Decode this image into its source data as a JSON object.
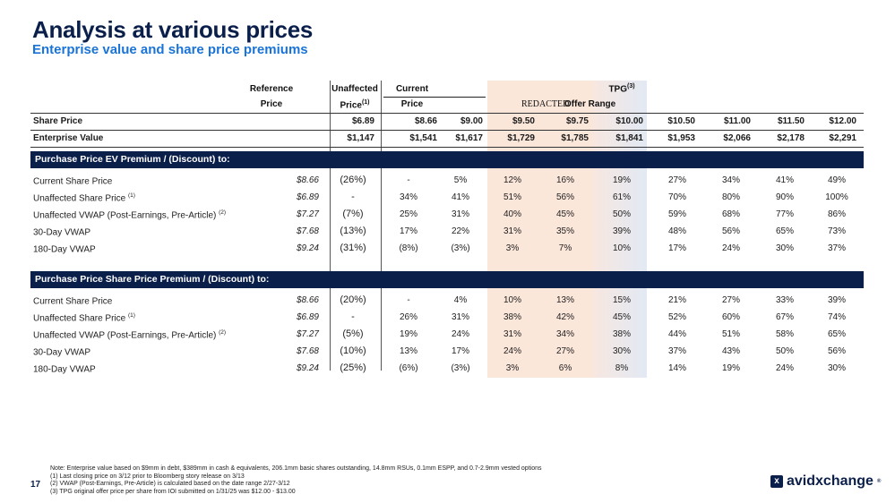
{
  "title": "Analysis at various prices",
  "subtitle": "Enterprise value and share price premiums",
  "header": {
    "reference_l1": "Reference",
    "reference_l2": "Price",
    "unaffected_l1": "Unaffected",
    "unaffected_l2": "Price",
    "unaffected_sup": "(1)",
    "current_l1": "Current",
    "current_l2": "Price",
    "tpg": "TPG",
    "tpg_sup": "(3)",
    "redacted": "REDACTED",
    "offer_range": "Offer Range"
  },
  "share_price": {
    "label": "Share Price",
    "values": [
      "$6.89",
      "$8.66",
      "$9.00",
      "$9.50",
      "$9.75",
      "$10.00",
      "$10.50",
      "$11.00",
      "$11.50",
      "$12.00"
    ]
  },
  "enterprise_value": {
    "label": "Enterprise Value",
    "values": [
      "$1,147",
      "$1,541",
      "$1,617",
      "$1,729",
      "$1,785",
      "$1,841",
      "$1,953",
      "$2,066",
      "$2,178",
      "$2,291"
    ]
  },
  "sections": [
    {
      "title": "Purchase Price EV Premium / (Discount) to:",
      "rows": [
        {
          "label": "Current Share Price",
          "sup": "",
          "ref": "$8.66",
          "unaffected": "(26%)",
          "values": [
            "-",
            "5%",
            "12%",
            "16%",
            "19%",
            "27%",
            "34%",
            "41%",
            "49%"
          ]
        },
        {
          "label": "Unaffected Share Price",
          "sup": "(1)",
          "ref": "$6.89",
          "unaffected": "-",
          "values": [
            "34%",
            "41%",
            "51%",
            "56%",
            "61%",
            "70%",
            "80%",
            "90%",
            "100%"
          ]
        },
        {
          "label": "Unaffected VWAP (Post-Earnings, Pre-Article)",
          "sup": "(2)",
          "ref": "$7.27",
          "unaffected": "(7%)",
          "values": [
            "25%",
            "31%",
            "40%",
            "45%",
            "50%",
            "59%",
            "68%",
            "77%",
            "86%"
          ]
        },
        {
          "label": "30-Day VWAP",
          "sup": "",
          "ref": "$7.68",
          "unaffected": "(13%)",
          "values": [
            "17%",
            "22%",
            "31%",
            "35%",
            "39%",
            "48%",
            "56%",
            "65%",
            "73%"
          ]
        },
        {
          "label": "180-Day VWAP",
          "sup": "",
          "ref": "$9.24",
          "unaffected": "(31%)",
          "values": [
            "(8%)",
            "(3%)",
            "3%",
            "7%",
            "10%",
            "17%",
            "24%",
            "30%",
            "37%"
          ]
        }
      ]
    },
    {
      "title": "Purchase Price Share Price Premium / (Discount) to:",
      "rows": [
        {
          "label": "Current Share Price",
          "sup": "",
          "ref": "$8.66",
          "unaffected": "(20%)",
          "values": [
            "-",
            "4%",
            "10%",
            "13%",
            "15%",
            "21%",
            "27%",
            "33%",
            "39%"
          ]
        },
        {
          "label": "Unaffected Share Price",
          "sup": "(1)",
          "ref": "$6.89",
          "unaffected": "-",
          "values": [
            "26%",
            "31%",
            "38%",
            "42%",
            "45%",
            "52%",
            "60%",
            "67%",
            "74%"
          ]
        },
        {
          "label": "Unaffected VWAP (Post-Earnings, Pre-Article)",
          "sup": "(2)",
          "ref": "$7.27",
          "unaffected": "(5%)",
          "values": [
            "19%",
            "24%",
            "31%",
            "34%",
            "38%",
            "44%",
            "51%",
            "58%",
            "65%"
          ]
        },
        {
          "label": "30-Day VWAP",
          "sup": "",
          "ref": "$7.68",
          "unaffected": "(10%)",
          "values": [
            "13%",
            "17%",
            "24%",
            "27%",
            "30%",
            "37%",
            "43%",
            "50%",
            "56%"
          ]
        },
        {
          "label": "180-Day VWAP",
          "sup": "",
          "ref": "$9.24",
          "unaffected": "(25%)",
          "values": [
            "(6%)",
            "(3%)",
            "3%",
            "6%",
            "8%",
            "14%",
            "19%",
            "24%",
            "30%"
          ]
        }
      ]
    }
  ],
  "notes": [
    "Note: Enterprise value based on $9mm in debt, $389mm in cash & equivalents, 206.1mm basic shares outstanding, 14.8mm RSUs, 0.1mm ESPP, and 0.7-2.9mm vested options",
    "(1)   Last closing price on 3/12 prior to Bloomberg story release on 3/13",
    "(2)   VWAP (Post-Earnings, Pre-Article) is calculated based on the date range 2/27-3/12",
    "(3)   TPG original offer price per share from IOI submitted on 1/31/25 was $12.00 - $13.00"
  ],
  "page_number": "17",
  "logo_text": "avidxchange",
  "logo_tm": "®",
  "logo_mark": "x"
}
